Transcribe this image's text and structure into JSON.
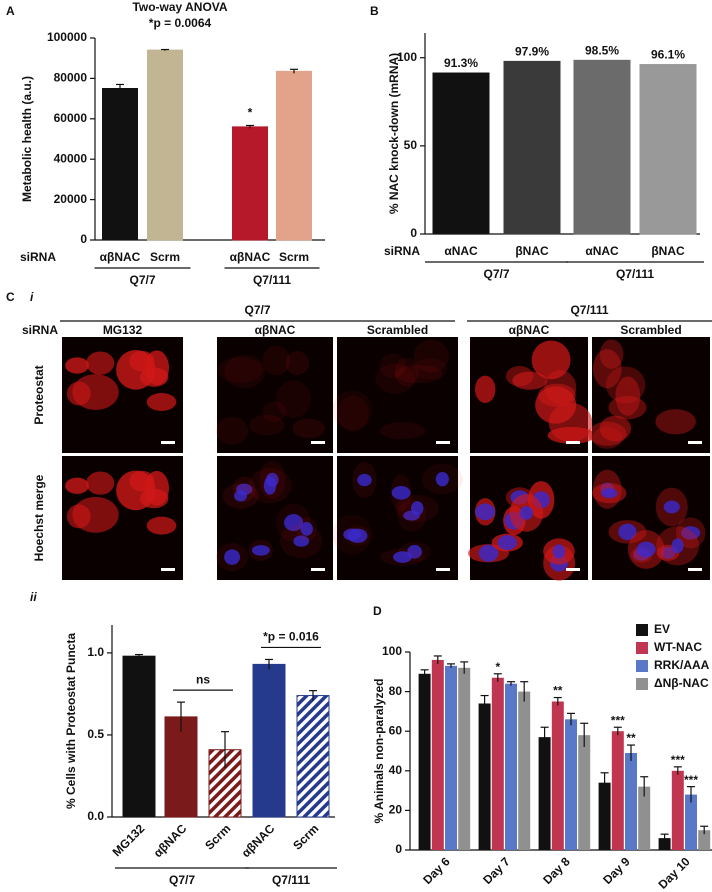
{
  "panel_labels": [
    "A",
    "B",
    "C",
    "D"
  ],
  "panel_c": {
    "sub_labels": [
      "i",
      "ii"
    ],
    "groups": [
      "Q7/7",
      "Q7/111"
    ],
    "row_header": "siRNA",
    "columns": [
      "MG132",
      "αβNAC",
      "Scrambled",
      "αβNAC",
      "Scrambled"
    ],
    "rows": [
      "Proteostat",
      "Hoechst merge"
    ]
  },
  "chart_data": [
    {
      "type": "bar",
      "title": "Two-way ANOVA",
      "subtitle": "*p = 0.0064",
      "ylabel": "Metabolic health (a.u.)",
      "x_row_label": "siRNA",
      "categories": [
        "αβNAC",
        "Scrm",
        "αβNAC",
        "Scrm"
      ],
      "values": [
        75000,
        94000,
        56000,
        83500
      ],
      "errors": [
        2000,
        300,
        700,
        1000
      ],
      "colors": [
        "#111111",
        "#c2b593",
        "#b5192a",
        "#e3a38a"
      ],
      "group_labels": [
        "Q7/7",
        "Q7/111"
      ],
      "annotations": [
        null,
        null,
        "*",
        null
      ],
      "ylim": [
        0,
        100000
      ],
      "yticks": [
        0,
        20000,
        40000,
        60000,
        80000,
        100000
      ]
    },
    {
      "type": "bar",
      "ylabel": "% NAC knock-down (mRNA)",
      "x_row_label": "siRNA",
      "categories": [
        "αNAC",
        "βNAC",
        "αNAC",
        "βNAC"
      ],
      "values": [
        91.3,
        97.9,
        98.5,
        96.1
      ],
      "value_labels": [
        "91.3%",
        "97.9%",
        "98.5%",
        "96.1%"
      ],
      "colors": [
        "#111111",
        "#3a3a3a",
        "#6b6b6b",
        "#999999"
      ],
      "group_labels": [
        "Q7/7",
        "Q7/111"
      ],
      "ylim": [
        0,
        114
      ],
      "yticks": [
        0,
        50,
        100
      ]
    },
    {
      "type": "bar",
      "ylabel": "% Cells with Proteostat Puncta",
      "categories": [
        "MG132",
        "αβNAC",
        "Scrm",
        "αβNAC",
        "Scrm"
      ],
      "values": [
        0.98,
        0.61,
        0.41,
        0.93,
        0.74
      ],
      "errors": [
        0.01,
        0.09,
        0.11,
        0.03,
        0.03
      ],
      "colors": [
        "#111111",
        "#7a1a1a",
        "#7a1a1a",
        "#253a8c",
        "#253a8c"
      ],
      "hatched": [
        false,
        false,
        true,
        false,
        true
      ],
      "group_labels": [
        "Q7/7",
        "Q7/111"
      ],
      "comparisons": [
        "ns",
        "*p = 0.016"
      ],
      "ylim": [
        0,
        1.17
      ],
      "yticks": [
        {
          "value": 0,
          "label": "0.0"
        },
        0.5,
        {
          "value": 1,
          "label": "1.0"
        }
      ]
    },
    {
      "type": "grouped-bar",
      "ylabel": "% Animals non-paralyzed",
      "categories": [
        "Day 6",
        "Day 7",
        "Day 8",
        "Day 9",
        "Day 10"
      ],
      "series": [
        {
          "name": "EV",
          "color": "#111111",
          "values": [
            89,
            74,
            57,
            34,
            6
          ],
          "errors": [
            2,
            4,
            5,
            5,
            2
          ],
          "annotations": [
            null,
            null,
            null,
            null,
            null
          ]
        },
        {
          "name": "WT-NAC",
          "color": "#c0354f",
          "values": [
            96,
            87,
            75,
            60,
            40
          ],
          "errors": [
            2,
            2,
            2,
            2,
            2
          ],
          "annotations": [
            null,
            "*",
            "**",
            "***",
            "***"
          ]
        },
        {
          "name": "RRK/AAA",
          "color": "#5a78c8",
          "values": [
            93,
            84,
            66,
            49,
            28
          ],
          "errors": [
            1,
            1,
            3,
            4,
            4
          ],
          "annotations": [
            null,
            null,
            null,
            "**",
            "***"
          ]
        },
        {
          "name": "ΔNβ-NAC",
          "color": "#909090",
          "values": [
            92,
            80,
            58,
            32,
            10
          ],
          "errors": [
            3,
            5,
            6,
            5,
            2
          ],
          "annotations": [
            null,
            null,
            null,
            null,
            null
          ]
        }
      ],
      "legend": "upper right",
      "ylim": [
        0,
        100
      ],
      "yticks": [
        0,
        20,
        40,
        60,
        80,
        100
      ]
    }
  ]
}
